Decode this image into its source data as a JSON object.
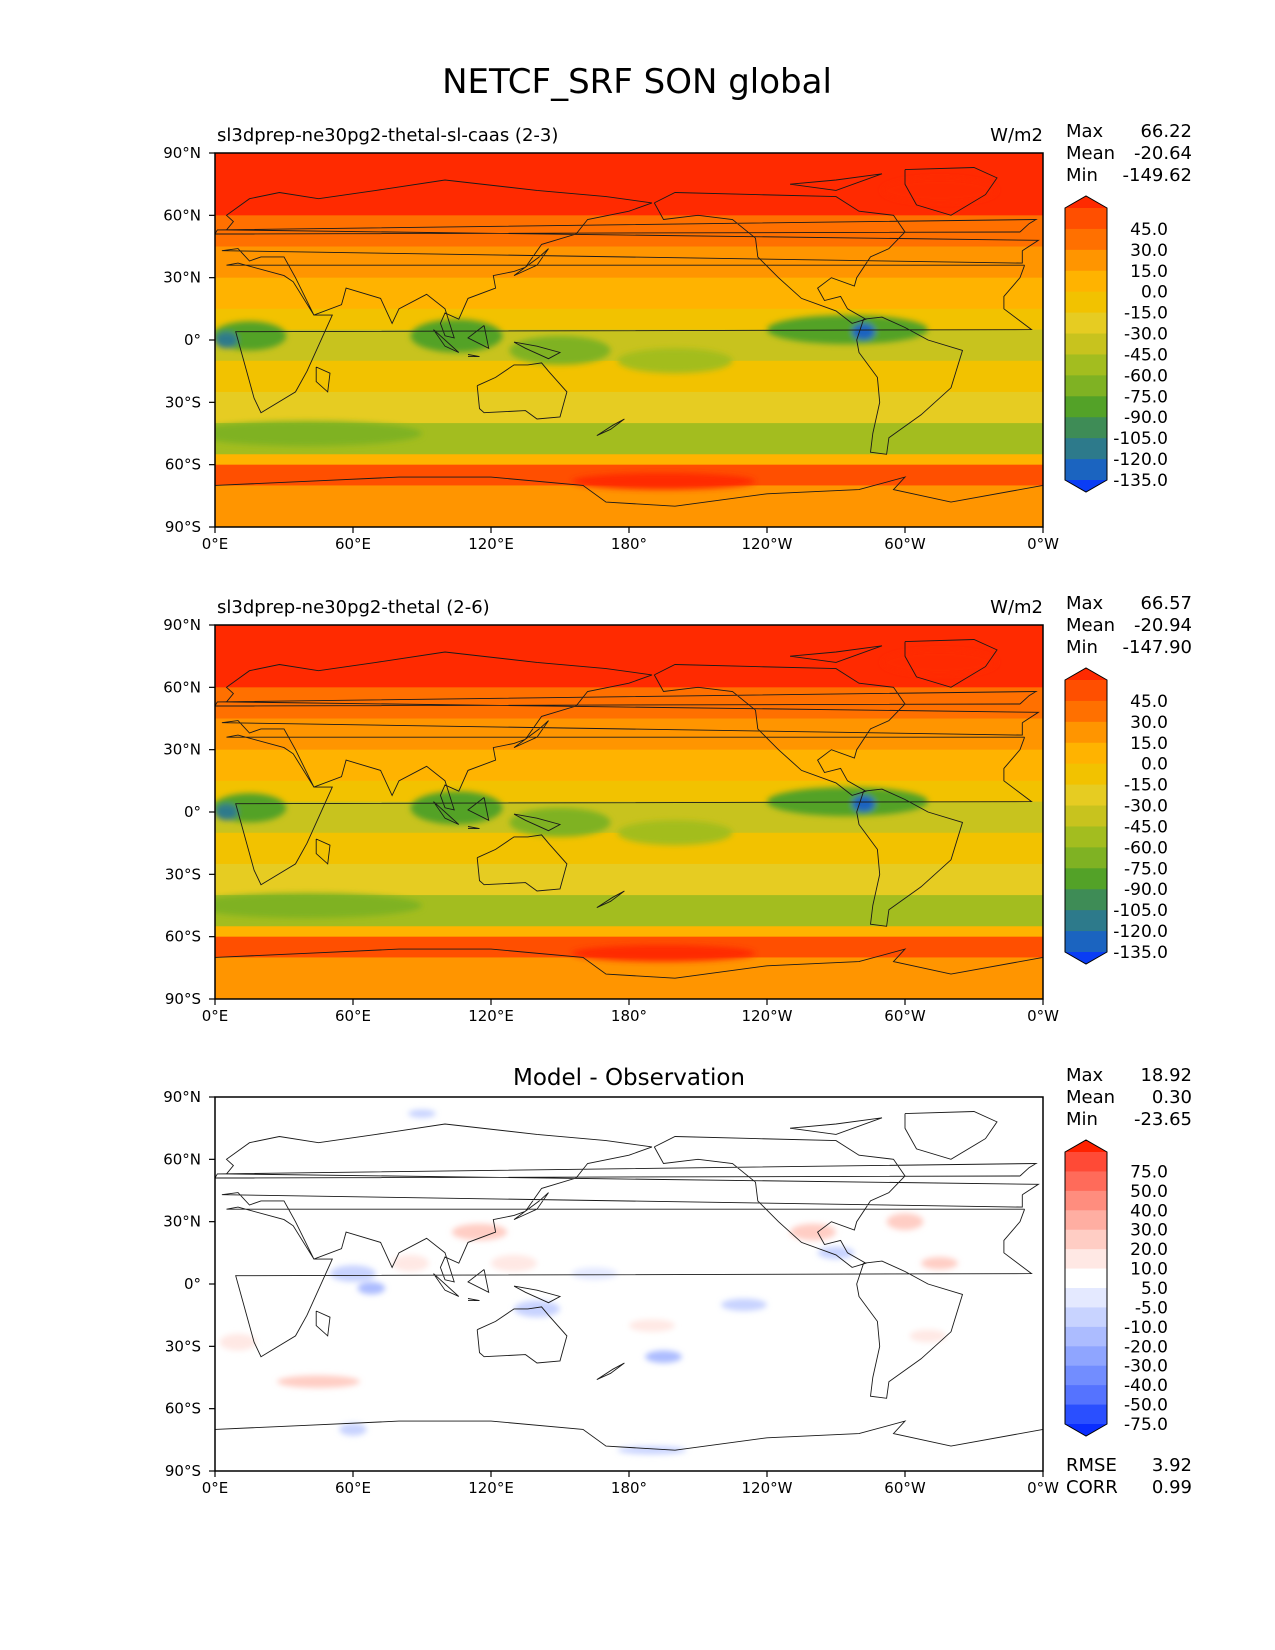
{
  "title": "NETCF_SRF SON global",
  "x_ticks": [
    "0°E",
    "60°E",
    "120°E",
    "180°",
    "120°W",
    "60°W",
    "0°W"
  ],
  "y_ticks": [
    "90°N",
    "60°N",
    "30°N",
    "0°",
    "30°S",
    "60°S",
    "90°S"
  ],
  "stat_labels": {
    "max": "Max",
    "mean": "Mean",
    "min": "Min",
    "rmse": "RMSE",
    "corr": "CORR"
  },
  "chart_data": [
    {
      "type": "heatmap",
      "title": "sl3dprep-ne30pg2-thetal-sl-caas (2-3)",
      "units": "W/m2",
      "xlim": [
        0,
        360
      ],
      "ylim": [
        -90,
        90
      ],
      "stats": {
        "max": "66.22",
        "mean": "-20.64",
        "min": "-149.62"
      },
      "colorbar": {
        "labels": [
          "45.0",
          "30.0",
          "15.0",
          "0.0",
          "-15.0",
          "-30.0",
          "-45.0",
          "-60.0",
          "-75.0",
          "-90.0",
          "-105.0",
          "-120.0",
          "-135.0"
        ],
        "colors": [
          "#ff2a00",
          "#ff4f00",
          "#ff7000",
          "#ff9500",
          "#ffb300",
          "#f2c200",
          "#e6cc22",
          "#c8c31e",
          "#a3bd1f",
          "#7fb223",
          "#53a228",
          "#3e8c56",
          "#2d7a8b",
          "#1b64c0",
          "#0a3df5"
        ]
      },
      "bands": [
        {
          "lat": [
            60,
            90
          ],
          "class": 0
        },
        {
          "lat": [
            45,
            60
          ],
          "class": 2
        },
        {
          "lat": [
            30,
            45
          ],
          "class": 3
        },
        {
          "lat": [
            15,
            30
          ],
          "class": 4
        },
        {
          "lat": [
            5,
            15
          ],
          "class": 5
        },
        {
          "lat": [
            -10,
            5
          ],
          "class": 7
        },
        {
          "lat": [
            -25,
            -10
          ],
          "class": 5
        },
        {
          "lat": [
            -40,
            -25
          ],
          "class": 6
        },
        {
          "lat": [
            -55,
            -40
          ],
          "class": 8
        },
        {
          "lat": [
            -60,
            -55
          ],
          "class": 4
        },
        {
          "lat": [
            -70,
            -60
          ],
          "class": 1
        },
        {
          "lat": [
            -90,
            -70
          ],
          "class": 3
        }
      ],
      "blobs": [
        {
          "lon": 275,
          "lat": 5,
          "w": 35,
          "h": 7,
          "class": 10
        },
        {
          "lon": 282,
          "lat": 4,
          "w": 5,
          "h": 4,
          "class": 13
        },
        {
          "lon": 15,
          "lat": 2,
          "w": 16,
          "h": 7,
          "class": 10
        },
        {
          "lon": 5,
          "lat": 0,
          "w": 5,
          "h": 4,
          "class": 12
        },
        {
          "lon": 105,
          "lat": 2,
          "w": 20,
          "h": 8,
          "class": 10
        },
        {
          "lon": 150,
          "lat": -5,
          "w": 22,
          "h": 7,
          "class": 9
        },
        {
          "lon": 200,
          "lat": -10,
          "w": 25,
          "h": 6,
          "class": 8
        },
        {
          "lon": 40,
          "lat": -45,
          "w": 50,
          "h": 6,
          "class": 9
        },
        {
          "lon": 195,
          "lat": -68,
          "w": 40,
          "h": 4,
          "class": 0
        },
        {
          "lon": 315,
          "lat": 72,
          "w": 25,
          "h": 6,
          "class": 0
        }
      ]
    },
    {
      "type": "heatmap",
      "title": "sl3dprep-ne30pg2-thetal (2-6)",
      "units": "W/m2",
      "xlim": [
        0,
        360
      ],
      "ylim": [
        -90,
        90
      ],
      "stats": {
        "max": "66.57",
        "mean": "-20.94",
        "min": "-147.90"
      },
      "colorbar": {
        "labels": [
          "45.0",
          "30.0",
          "15.0",
          "0.0",
          "-15.0",
          "-30.0",
          "-45.0",
          "-60.0",
          "-75.0",
          "-90.0",
          "-105.0",
          "-120.0",
          "-135.0"
        ],
        "colors": [
          "#ff2a00",
          "#ff4f00",
          "#ff7000",
          "#ff9500",
          "#ffb300",
          "#f2c200",
          "#e6cc22",
          "#c8c31e",
          "#a3bd1f",
          "#7fb223",
          "#53a228",
          "#3e8c56",
          "#2d7a8b",
          "#1b64c0",
          "#0a3df5"
        ]
      },
      "bands": [
        {
          "lat": [
            60,
            90
          ],
          "class": 0
        },
        {
          "lat": [
            45,
            60
          ],
          "class": 2
        },
        {
          "lat": [
            30,
            45
          ],
          "class": 3
        },
        {
          "lat": [
            15,
            30
          ],
          "class": 4
        },
        {
          "lat": [
            5,
            15
          ],
          "class": 5
        },
        {
          "lat": [
            -10,
            5
          ],
          "class": 7
        },
        {
          "lat": [
            -25,
            -10
          ],
          "class": 5
        },
        {
          "lat": [
            -40,
            -25
          ],
          "class": 6
        },
        {
          "lat": [
            -55,
            -40
          ],
          "class": 8
        },
        {
          "lat": [
            -60,
            -55
          ],
          "class": 4
        },
        {
          "lat": [
            -70,
            -60
          ],
          "class": 1
        },
        {
          "lat": [
            -90,
            -70
          ],
          "class": 3
        }
      ],
      "blobs": [
        {
          "lon": 275,
          "lat": 5,
          "w": 35,
          "h": 7,
          "class": 10
        },
        {
          "lon": 282,
          "lat": 4,
          "w": 5,
          "h": 4,
          "class": 13
        },
        {
          "lon": 15,
          "lat": 2,
          "w": 16,
          "h": 7,
          "class": 10
        },
        {
          "lon": 5,
          "lat": 0,
          "w": 5,
          "h": 4,
          "class": 12
        },
        {
          "lon": 105,
          "lat": 2,
          "w": 20,
          "h": 8,
          "class": 10
        },
        {
          "lon": 150,
          "lat": -5,
          "w": 22,
          "h": 7,
          "class": 9
        },
        {
          "lon": 200,
          "lat": -10,
          "w": 25,
          "h": 6,
          "class": 8
        },
        {
          "lon": 40,
          "lat": -45,
          "w": 50,
          "h": 6,
          "class": 9
        },
        {
          "lon": 195,
          "lat": -68,
          "w": 40,
          "h": 4,
          "class": 0
        },
        {
          "lon": 315,
          "lat": 72,
          "w": 25,
          "h": 6,
          "class": 0
        }
      ]
    },
    {
      "type": "heatmap",
      "title": "Model - Observation",
      "units": "",
      "xlim": [
        0,
        360
      ],
      "ylim": [
        -90,
        90
      ],
      "stats": {
        "max": "18.92",
        "mean": "0.30",
        "min": "-23.65",
        "rmse": "3.92",
        "corr": "0.99"
      },
      "colorbar": {
        "labels": [
          "75.0",
          "50.0",
          "40.0",
          "30.0",
          "20.0",
          "10.0",
          "5.0",
          "-5.0",
          "-10.0",
          "-20.0",
          "-30.0",
          "-40.0",
          "-50.0",
          "-75.0"
        ],
        "colors": [
          "#ff2200",
          "#ff4a36",
          "#ff6b5a",
          "#ff8d7e",
          "#ffaea2",
          "#ffcdc4",
          "#ffe8e4",
          "#ffffff",
          "#e4e9ff",
          "#c8d3ff",
          "#acbcff",
          "#8fa5ff",
          "#728dff",
          "#5573ff",
          "#2a4fff",
          "#0a2dff"
        ]
      },
      "bands": [
        {
          "lat": [
            -90,
            90
          ],
          "class": 7
        }
      ],
      "blobs": [
        {
          "lon": 45,
          "lat": -47,
          "w": 18,
          "h": 3,
          "class": 5
        },
        {
          "lon": 10,
          "lat": -28,
          "w": 8,
          "h": 4,
          "class": 6
        },
        {
          "lon": 60,
          "lat": 5,
          "w": 10,
          "h": 4,
          "class": 9
        },
        {
          "lon": 68,
          "lat": -2,
          "w": 6,
          "h": 3,
          "class": 10
        },
        {
          "lon": 85,
          "lat": 10,
          "w": 8,
          "h": 4,
          "class": 6
        },
        {
          "lon": 115,
          "lat": 25,
          "w": 12,
          "h": 4,
          "class": 5
        },
        {
          "lon": 130,
          "lat": 10,
          "w": 10,
          "h": 4,
          "class": 6
        },
        {
          "lon": 140,
          "lat": -12,
          "w": 10,
          "h": 4,
          "class": 9
        },
        {
          "lon": 190,
          "lat": -20,
          "w": 10,
          "h": 3,
          "class": 6
        },
        {
          "lon": 195,
          "lat": -35,
          "w": 8,
          "h": 3,
          "class": 10
        },
        {
          "lon": 260,
          "lat": 25,
          "w": 10,
          "h": 4,
          "class": 5
        },
        {
          "lon": 270,
          "lat": 15,
          "w": 8,
          "h": 3,
          "class": 9
        },
        {
          "lon": 300,
          "lat": 30,
          "w": 8,
          "h": 4,
          "class": 5
        },
        {
          "lon": 315,
          "lat": 10,
          "w": 8,
          "h": 3,
          "class": 5
        },
        {
          "lon": 310,
          "lat": -25,
          "w": 8,
          "h": 3,
          "class": 6
        },
        {
          "lon": 190,
          "lat": -80,
          "w": 15,
          "h": 2,
          "class": 9
        },
        {
          "lon": 60,
          "lat": -70,
          "w": 6,
          "h": 3,
          "class": 9
        },
        {
          "lon": 90,
          "lat": 82,
          "w": 6,
          "h": 2,
          "class": 9
        },
        {
          "lon": 230,
          "lat": -10,
          "w": 10,
          "h": 3,
          "class": 9
        },
        {
          "lon": 165,
          "lat": 5,
          "w": 10,
          "h": 3,
          "class": 8
        }
      ]
    }
  ]
}
